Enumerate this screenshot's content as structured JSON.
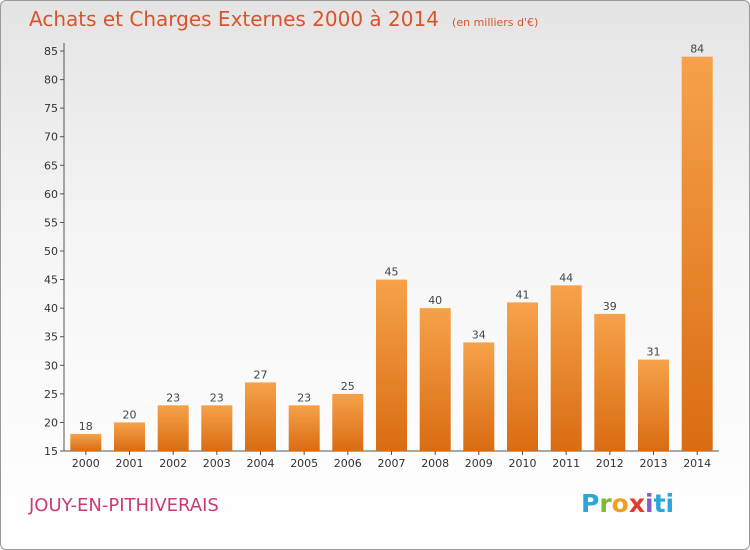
{
  "header": {
    "title": "Achats et Charges Externes 2000 à 2014",
    "subtitle": "(en milliers d'€)"
  },
  "footer": {
    "commune": "JOUY-EN-PITHIVERAIS",
    "logo_text": "Proxiti"
  },
  "colors": {
    "title": "#d9542a",
    "commune": "#cc3a74",
    "bar_light": "#f6a24a",
    "bar_dark": "#d96c12"
  },
  "chart_data": {
    "type": "bar",
    "title": "Achats et Charges Externes 2000 à 2014",
    "subtitle": "(en milliers d'€)",
    "xlabel": "",
    "ylabel": "",
    "categories": [
      "2000",
      "2001",
      "2002",
      "2003",
      "2004",
      "2005",
      "2006",
      "2007",
      "2008",
      "2009",
      "2010",
      "2011",
      "2012",
      "2013",
      "2014"
    ],
    "values": [
      18,
      20,
      23,
      23,
      27,
      23,
      25,
      45,
      40,
      34,
      41,
      44,
      39,
      31,
      84
    ],
    "ylim": [
      15,
      85
    ],
    "yticks": [
      15,
      20,
      25,
      30,
      35,
      40,
      45,
      50,
      55,
      60,
      65,
      70,
      75,
      80,
      85
    ],
    "grid": false,
    "data_labels": true
  }
}
